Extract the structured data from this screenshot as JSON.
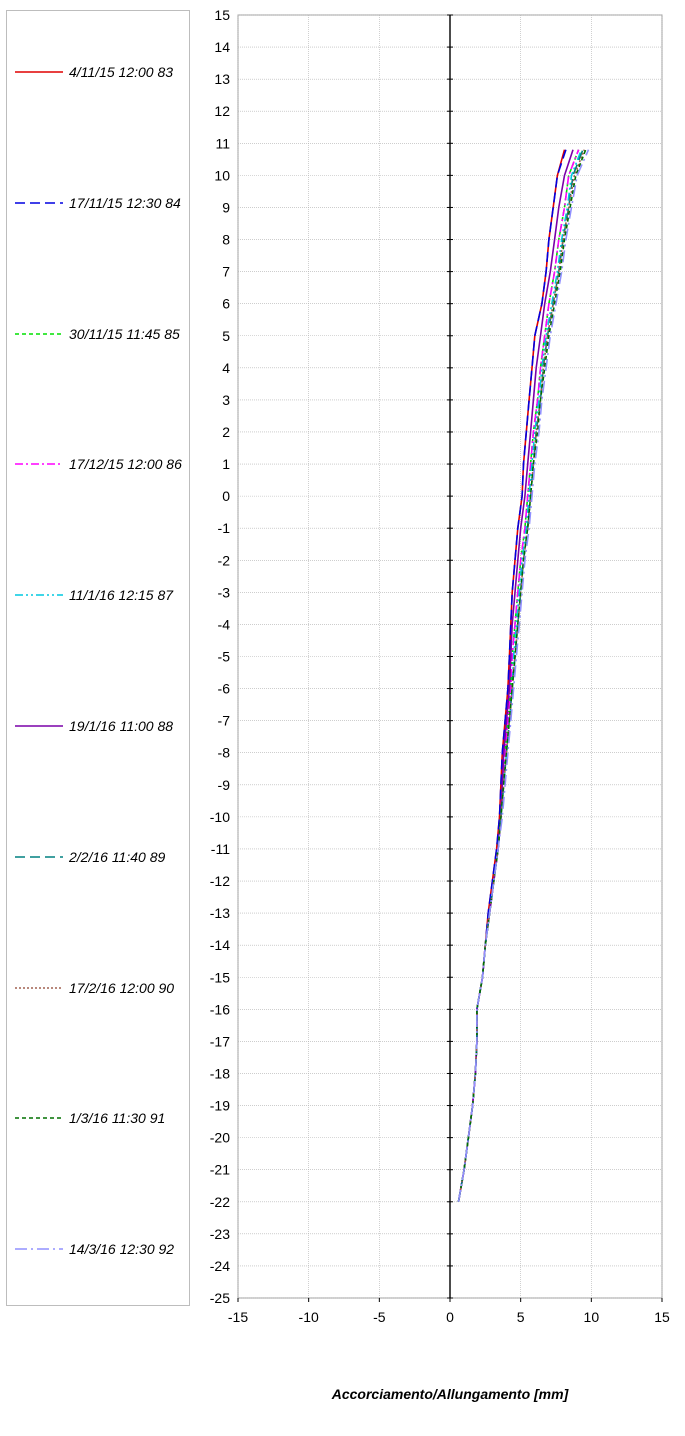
{
  "chart_data": {
    "type": "line",
    "xlabel": "Accorciamento/Allungamento [mm]",
    "ylabel": "",
    "xlim": [
      -15,
      15
    ],
    "ylim": [
      -25,
      15
    ],
    "x_ticks": [
      "-15",
      "-10",
      "-5",
      "0",
      "5",
      "10",
      "15"
    ],
    "y_ticks": [
      "15",
      "14",
      "13",
      "12",
      "11",
      "10",
      "9",
      "8",
      "7",
      "6",
      "5",
      "4",
      "3",
      "2",
      "1",
      "0",
      "-1",
      "-2",
      "-3",
      "-4",
      "-5",
      "-6",
      "-7",
      "-8",
      "-9",
      "-10",
      "-11",
      "-12",
      "-13",
      "-14",
      "-15",
      "-16",
      "-17",
      "-18",
      "-19",
      "-20",
      "-21",
      "-22",
      "-23",
      "-24",
      "-25"
    ],
    "grid": true,
    "legend_position": "left",
    "y": [
      -22,
      -21,
      -20,
      -19,
      -18,
      -17,
      -16,
      -15,
      -14,
      -13,
      -12,
      -11,
      -10,
      -9,
      -8,
      -7,
      -6,
      -5,
      -4,
      -3,
      -2,
      -1,
      0,
      1,
      2,
      3,
      4,
      5,
      6,
      7,
      8,
      9,
      10,
      10.8
    ],
    "series": [
      {
        "name": "4/11/15 12:00 83",
        "color": "#e00000",
        "dash": "solid",
        "x": [
          0.6,
          1.0,
          1.3,
          1.6,
          1.8,
          1.9,
          1.9,
          2.3,
          2.5,
          2.7,
          3.0,
          3.3,
          3.5,
          3.6,
          3.7,
          3.9,
          4.1,
          4.2,
          4.3,
          4.4,
          4.6,
          4.8,
          5.1,
          5.2,
          5.4,
          5.6,
          5.8,
          6.0,
          6.5,
          6.8,
          7.0,
          7.3,
          7.6,
          8.1
        ]
      },
      {
        "name": "17/11/15 12:30 84",
        "color": "#0000e0",
        "dash": "long-dash",
        "x": [
          0.6,
          1.0,
          1.3,
          1.6,
          1.8,
          1.9,
          1.9,
          2.3,
          2.5,
          2.7,
          3.0,
          3.3,
          3.5,
          3.6,
          3.7,
          3.9,
          4.1,
          4.2,
          4.3,
          4.4,
          4.6,
          4.8,
          5.1,
          5.2,
          5.4,
          5.6,
          5.8,
          6.0,
          6.5,
          6.8,
          7.0,
          7.3,
          7.6,
          8.2
        ]
      },
      {
        "name": "30/11/15 11:45 85",
        "color": "#00e000",
        "dash": "short-dash",
        "x": [
          0.6,
          1.0,
          1.3,
          1.6,
          1.8,
          1.9,
          1.9,
          2.3,
          2.5,
          2.8,
          3.1,
          3.4,
          3.6,
          3.7,
          3.9,
          4.1,
          4.3,
          4.4,
          4.6,
          4.8,
          5.0,
          5.3,
          5.5,
          5.7,
          5.9,
          6.2,
          6.4,
          6.7,
          7.0,
          7.4,
          7.7,
          8.1,
          8.4,
          9.1
        ]
      },
      {
        "name": "17/12/15 12:00 86",
        "color": "#ff00ff",
        "dash": "dash-dot",
        "x": [
          0.6,
          1.0,
          1.3,
          1.6,
          1.8,
          1.9,
          1.9,
          2.3,
          2.5,
          2.8,
          3.1,
          3.4,
          3.6,
          3.7,
          3.9,
          4.1,
          4.3,
          4.4,
          4.6,
          4.8,
          5.0,
          5.3,
          5.5,
          5.7,
          5.9,
          6.2,
          6.4,
          6.7,
          7.0,
          7.4,
          7.7,
          8.1,
          8.4,
          9.1
        ]
      },
      {
        "name": "11/1/16 12:15 87",
        "color": "#00c8e0",
        "dash": "dash-dot-dot",
        "x": [
          0.6,
          1.0,
          1.3,
          1.6,
          1.8,
          1.9,
          1.9,
          2.3,
          2.5,
          2.8,
          3.1,
          3.4,
          3.6,
          3.8,
          4.0,
          4.2,
          4.4,
          4.5,
          4.7,
          4.9,
          5.1,
          5.4,
          5.6,
          5.8,
          6.0,
          6.3,
          6.5,
          6.8,
          7.2,
          7.6,
          7.9,
          8.3,
          8.6,
          9.3
        ]
      },
      {
        "name": "19/1/16 11:00 88",
        "color": "#7a00a8",
        "dash": "solid",
        "x": [
          0.6,
          1.0,
          1.3,
          1.6,
          1.8,
          1.9,
          1.9,
          2.3,
          2.5,
          2.8,
          3.1,
          3.4,
          3.6,
          3.7,
          3.8,
          4.0,
          4.2,
          4.3,
          4.4,
          4.6,
          4.8,
          5.0,
          5.3,
          5.5,
          5.7,
          5.9,
          6.1,
          6.4,
          6.7,
          7.1,
          7.4,
          7.7,
          8.1,
          8.7
        ]
      },
      {
        "name": "2/2/16 11:40 89",
        "color": "#008080",
        "dash": "long-dash",
        "x": [
          0.6,
          1.0,
          1.3,
          1.6,
          1.8,
          1.9,
          1.9,
          2.3,
          2.5,
          2.8,
          3.1,
          3.4,
          3.6,
          3.8,
          4.0,
          4.2,
          4.4,
          4.6,
          4.8,
          5.0,
          5.2,
          5.5,
          5.7,
          5.9,
          6.1,
          6.4,
          6.6,
          6.9,
          7.3,
          7.7,
          8.0,
          8.4,
          8.7,
          9.4
        ]
      },
      {
        "name": "17/2/16 12:00 90",
        "color": "#a06050",
        "dash": "dotted",
        "x": [
          0.6,
          1.0,
          1.3,
          1.6,
          1.8,
          1.9,
          1.9,
          2.3,
          2.5,
          2.8,
          3.1,
          3.4,
          3.6,
          3.8,
          4.0,
          4.2,
          4.4,
          4.6,
          4.8,
          5.0,
          5.2,
          5.5,
          5.7,
          5.9,
          6.1,
          6.4,
          6.6,
          6.9,
          7.3,
          7.7,
          8.0,
          8.4,
          8.8,
          9.5
        ]
      },
      {
        "name": "1/3/16 11:30 91",
        "color": "#007000",
        "dash": "short-dash",
        "x": [
          0.6,
          1.0,
          1.3,
          1.6,
          1.8,
          1.9,
          1.9,
          2.3,
          2.5,
          2.8,
          3.1,
          3.4,
          3.6,
          3.8,
          4.0,
          4.2,
          4.4,
          4.6,
          4.8,
          5.0,
          5.2,
          5.5,
          5.7,
          5.9,
          6.2,
          6.4,
          6.7,
          7.0,
          7.4,
          7.8,
          8.1,
          8.5,
          8.9,
          9.6
        ]
      },
      {
        "name": "14/3/16 12:30 92",
        "color": "#9090ff",
        "dash": "long-dash-dot",
        "x": [
          0.6,
          1.0,
          1.3,
          1.6,
          1.8,
          1.9,
          1.9,
          2.3,
          2.5,
          2.8,
          3.1,
          3.4,
          3.7,
          3.9,
          4.1,
          4.3,
          4.5,
          4.7,
          4.9,
          5.1,
          5.3,
          5.6,
          5.8,
          6.0,
          6.3,
          6.5,
          6.8,
          7.1,
          7.5,
          7.9,
          8.2,
          8.6,
          9.0,
          9.8
        ]
      }
    ]
  }
}
